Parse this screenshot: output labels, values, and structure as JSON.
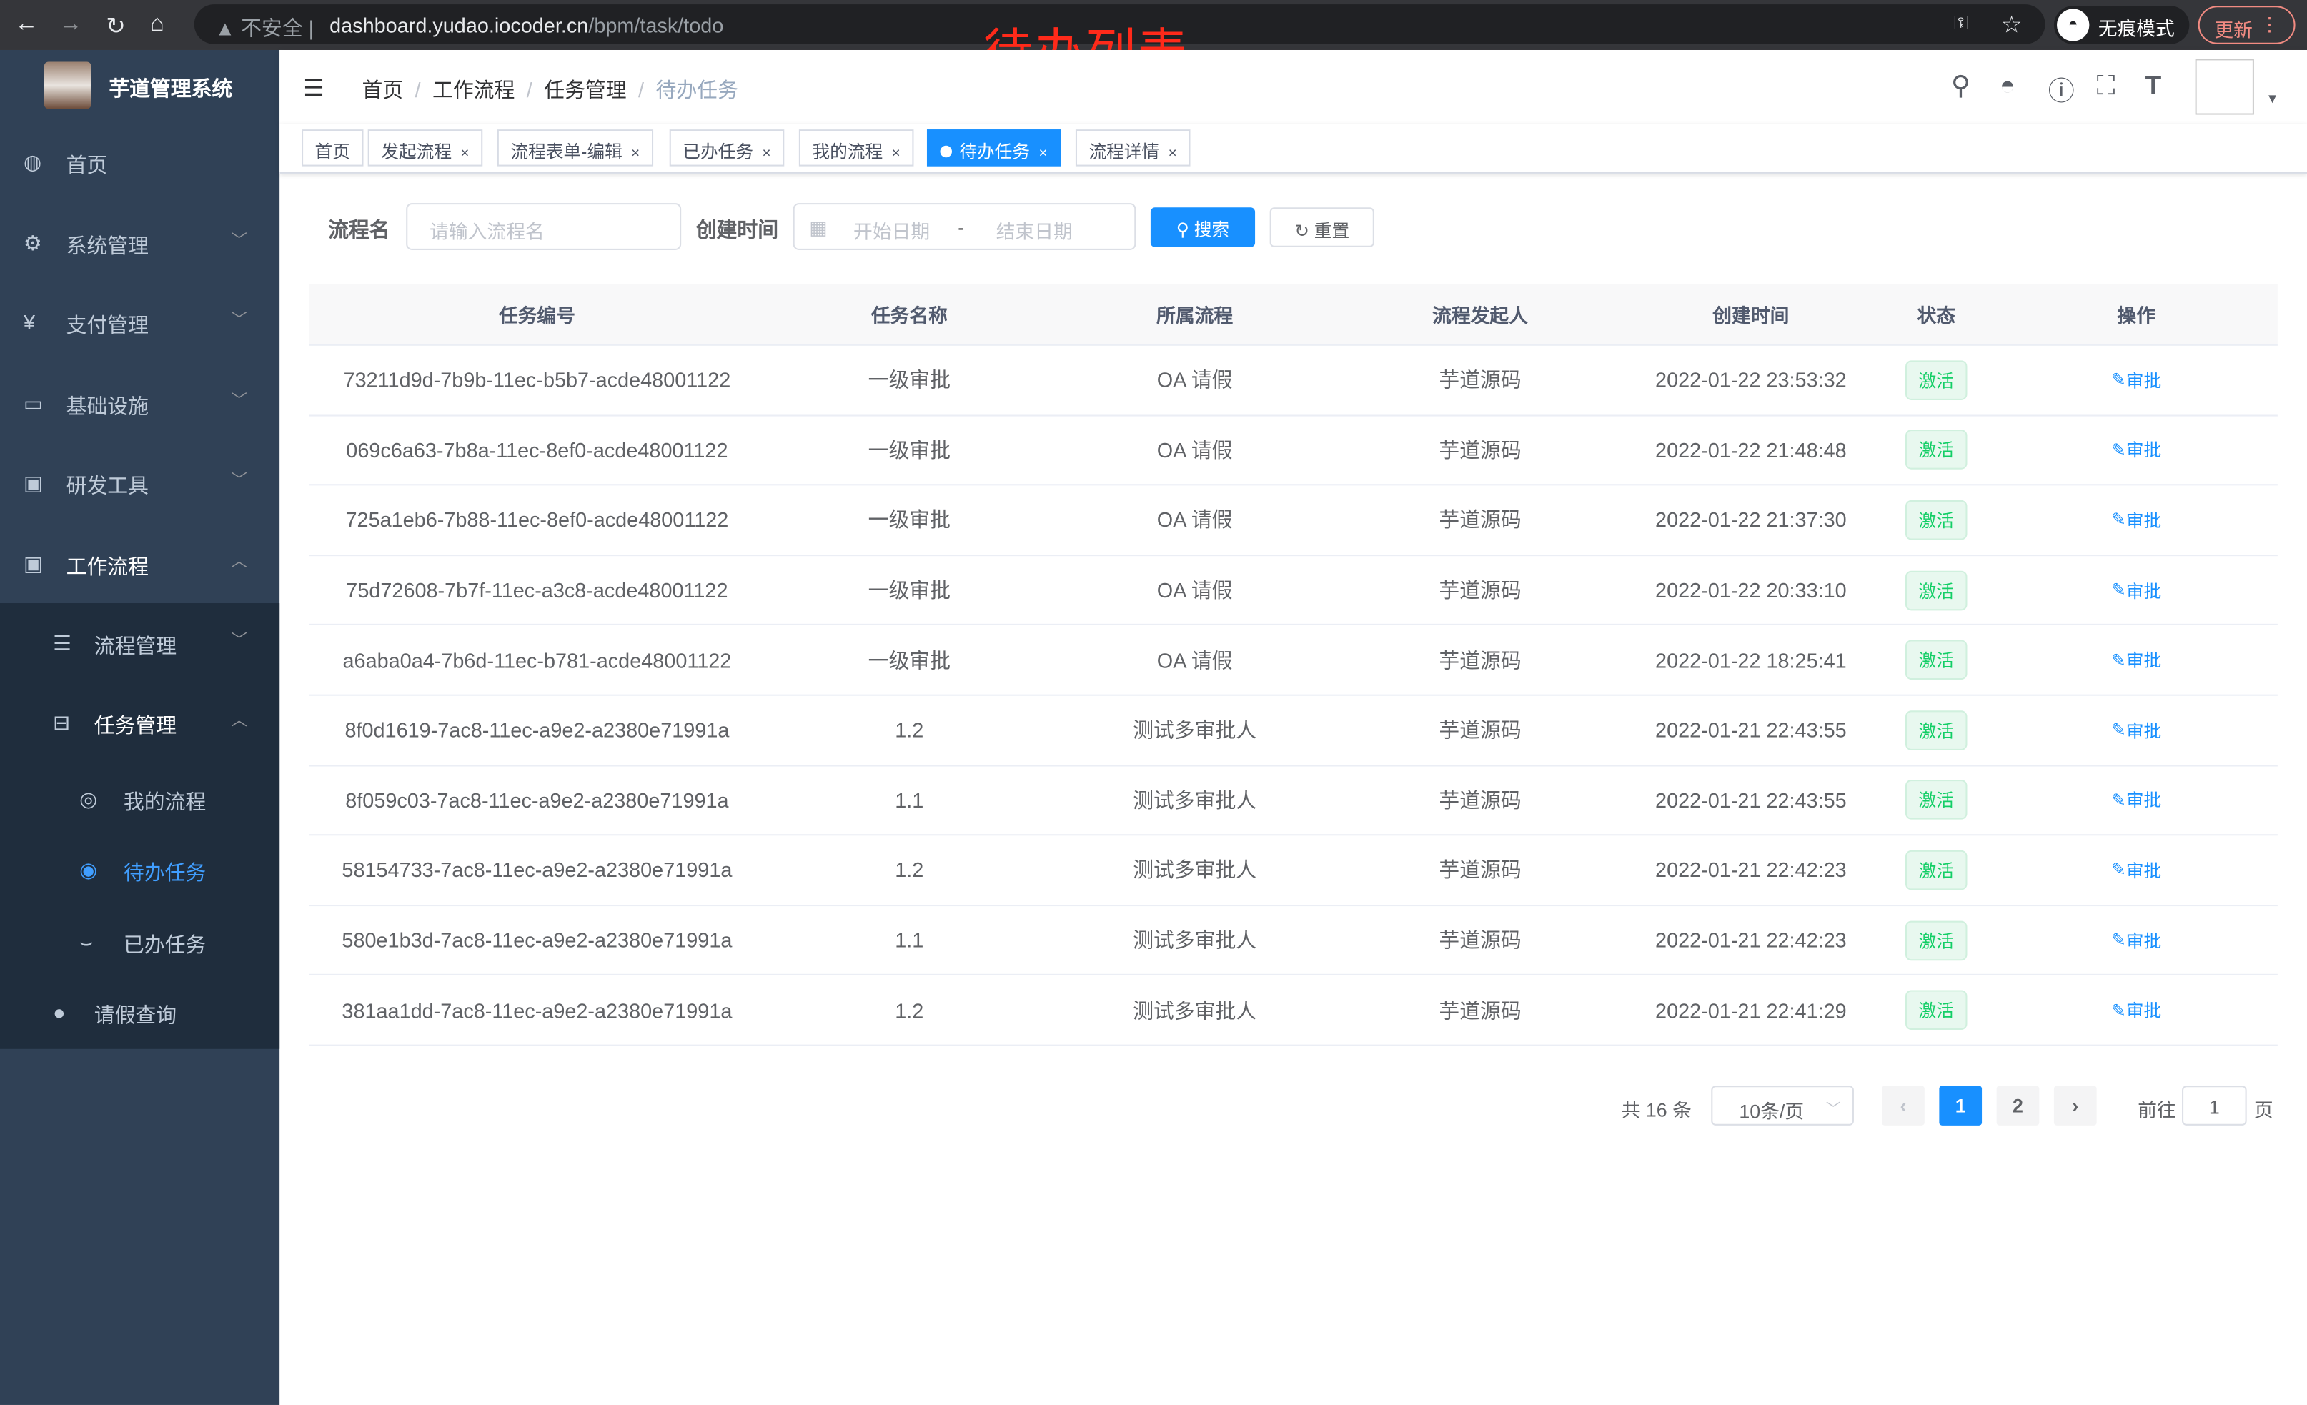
{
  "browser": {
    "insecure_label": "不安全",
    "url_host": "dashboard.yudao.iocoder.cn",
    "url_path": "/bpm/task/todo",
    "incognito_label": "无痕模式",
    "update_label": "更新"
  },
  "overlay_title": "待办列表",
  "sidebar": {
    "brand": "芋道管理系统",
    "items": [
      {
        "label": "首页",
        "icon": "dashboard-icon"
      },
      {
        "label": "系统管理",
        "icon": "gear-icon"
      },
      {
        "label": "支付管理",
        "icon": "yen-icon"
      },
      {
        "label": "基础设施",
        "icon": "monitor-icon"
      },
      {
        "label": "研发工具",
        "icon": "toolbox-icon"
      },
      {
        "label": "工作流程",
        "icon": "toolbox-icon"
      },
      {
        "label": "流程管理",
        "icon": "list-icon"
      },
      {
        "label": "任务管理",
        "icon": "tree-icon"
      },
      {
        "label": "我的流程",
        "icon": "chat-icon"
      },
      {
        "label": "待办任务",
        "icon": "eye-icon"
      },
      {
        "label": "已办任务",
        "icon": "eye-closed-icon"
      },
      {
        "label": "请假查询",
        "icon": "user-icon"
      }
    ]
  },
  "breadcrumb": [
    "首页",
    "工作流程",
    "任务管理",
    "待办任务"
  ],
  "tags": [
    {
      "label": "首页",
      "closable": false
    },
    {
      "label": "发起流程",
      "closable": true
    },
    {
      "label": "流程表单-编辑",
      "closable": true
    },
    {
      "label": "已办任务",
      "closable": true
    },
    {
      "label": "我的流程",
      "closable": true
    },
    {
      "label": "待办任务",
      "closable": true,
      "active": true
    },
    {
      "label": "流程详情",
      "closable": true
    }
  ],
  "search": {
    "name_label": "流程名",
    "name_placeholder": "请输入流程名",
    "time_label": "创建时间",
    "start_placeholder": "开始日期",
    "range_sep": "-",
    "end_placeholder": "结束日期",
    "search_button": "搜索",
    "reset_button": "重置"
  },
  "table": {
    "headers": [
      "任务编号",
      "任务名称",
      "所属流程",
      "流程发起人",
      "创建时间",
      "状态",
      "操作"
    ],
    "rows": [
      [
        "73211d9d-7b9b-11ec-b5b7-acde48001122",
        "一级审批",
        "OA 请假",
        "芋道源码",
        "2022-01-22 23:53:32",
        "激活",
        "审批"
      ],
      [
        "069c6a63-7b8a-11ec-8ef0-acde48001122",
        "一级审批",
        "OA 请假",
        "芋道源码",
        "2022-01-22 21:48:48",
        "激活",
        "审批"
      ],
      [
        "725a1eb6-7b88-11ec-8ef0-acde48001122",
        "一级审批",
        "OA 请假",
        "芋道源码",
        "2022-01-22 21:37:30",
        "激活",
        "审批"
      ],
      [
        "75d72608-7b7f-11ec-a3c8-acde48001122",
        "一级审批",
        "OA 请假",
        "芋道源码",
        "2022-01-22 20:33:10",
        "激活",
        "审批"
      ],
      [
        "a6aba0a4-7b6d-11ec-b781-acde48001122",
        "一级审批",
        "OA 请假",
        "芋道源码",
        "2022-01-22 18:25:41",
        "激活",
        "审批"
      ],
      [
        "8f0d1619-7ac8-11ec-a9e2-a2380e71991a",
        "1.2",
        "测试多审批人",
        "芋道源码",
        "2022-01-21 22:43:55",
        "激活",
        "审批"
      ],
      [
        "8f059c03-7ac8-11ec-a9e2-a2380e71991a",
        "1.1",
        "测试多审批人",
        "芋道源码",
        "2022-01-21 22:43:55",
        "激活",
        "审批"
      ],
      [
        "58154733-7ac8-11ec-a9e2-a2380e71991a",
        "1.2",
        "测试多审批人",
        "芋道源码",
        "2022-01-21 22:42:23",
        "激活",
        "审批"
      ],
      [
        "580e1b3d-7ac8-11ec-a9e2-a2380e71991a",
        "1.1",
        "测试多审批人",
        "芋道源码",
        "2022-01-21 22:42:23",
        "激活",
        "审批"
      ],
      [
        "381aa1dd-7ac8-11ec-a9e2-a2380e71991a",
        "1.2",
        "测试多审批人",
        "芋道源码",
        "2022-01-21 22:41:29",
        "激活",
        "审批"
      ]
    ]
  },
  "pagination": {
    "total_text": "共 16 条",
    "page_size": "10条/页",
    "pages": [
      "1",
      "2"
    ],
    "current": "1",
    "goto_label": "前往",
    "goto_value": "1",
    "goto_suffix": "页"
  },
  "colors": {
    "primary": "#1890ff",
    "sidebar": "#304156",
    "active_menu": "#409eff",
    "status_green": "#13ce66",
    "overlay_red": "#ff2a1a"
  }
}
